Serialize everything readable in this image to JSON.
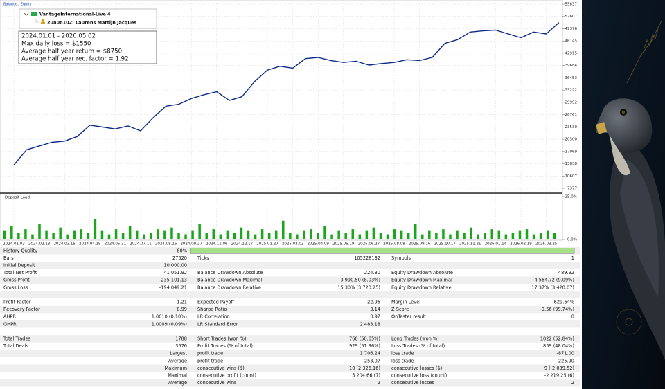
{
  "header": {
    "legend": "Balance / Equity",
    "server": "VantageInternational-Live 4",
    "account": "20808102: Laurens Martijn Jacques",
    "deposit_label": "Deposit Load"
  },
  "info_box": [
    "2024.01.01 - 2026.05.02",
    "Max daily loss = $1550",
    "Average half year return = $8750",
    "Average half year rec. factor = 1.92"
  ],
  "chart_data": [
    {
      "type": "line",
      "categories": [
        "2024.01.03",
        null,
        "2024.02.13",
        null,
        "2024.03.15",
        null,
        "2024.04.18",
        null,
        "2024.05.31",
        null,
        "2024.07.11",
        null,
        "2024.08.16",
        null,
        "2024.09.27",
        null,
        "2024.11.06",
        null,
        "2024.12.17",
        null,
        "2025.01.27",
        null,
        "2025.03.03",
        null,
        "2025.04.09",
        null,
        "2025.05.19",
        null,
        "2025.06.27",
        null,
        "2025.08.08",
        null,
        "2025.09.16",
        null,
        "2025.10.17",
        null,
        "2025.11.21",
        null,
        "2026.01.14",
        null,
        "2026.02.19",
        null,
        "2026.03.25",
        null
      ],
      "series": [
        {
          "color": "#0b2a86",
          "values": [
            13500,
            17500,
            18500,
            19500,
            19800,
            21000,
            24000,
            23500,
            23000,
            23800,
            22500,
            26000,
            29000,
            29500,
            31000,
            32000,
            32800,
            30500,
            31500,
            35500,
            38500,
            39500,
            39000,
            41500,
            41800,
            41000,
            40500,
            40800,
            39800,
            40200,
            40500,
            41200,
            41000,
            41800,
            45500,
            46500,
            48500,
            48800,
            49000,
            48000,
            47000,
            48500,
            48000,
            51000
          ]
        }
      ],
      "ylim": [
        7377,
        55837
      ],
      "yticks": [
        7377,
        10607,
        13838,
        17069,
        20300,
        23530,
        26761,
        29992,
        33222,
        36453,
        39684,
        42915,
        46145,
        49376,
        52607,
        55837
      ],
      "grid": true
    },
    {
      "type": "bar",
      "color": "#1aa81a",
      "values": [
        5,
        8,
        4,
        6,
        3,
        9,
        5,
        4,
        7,
        3,
        5,
        6,
        4,
        12,
        5,
        3,
        6,
        4,
        8,
        5,
        3,
        4,
        6,
        5,
        7,
        4,
        3,
        5,
        9,
        4,
        6,
        3,
        5,
        4,
        7,
        5,
        3,
        6,
        4,
        5,
        11,
        4,
        3,
        5,
        6,
        4,
        8,
        3,
        5,
        4,
        6,
        3,
        5,
        7,
        4,
        3,
        6,
        5,
        4,
        9,
        3,
        5,
        4,
        6,
        3,
        5,
        4,
        7,
        3,
        4,
        6,
        5,
        3,
        4,
        5,
        6,
        3,
        4,
        5,
        4
      ],
      "ylim": [
        0,
        25
      ],
      "yticks": [
        {
          "value": 0,
          "label": "0.0%"
        },
        {
          "value": 25,
          "label": "25.0%"
        }
      ]
    }
  ],
  "report": {
    "rows": [
      {
        "cells": [
          [
            "History Quality",
            "80%"
          ]
        ]
      },
      {
        "cells": [
          [
            "Bars",
            "27520"
          ],
          [
            "Ticks",
            "105228132"
          ],
          [
            "Symbols",
            "1"
          ]
        ]
      },
      {
        "cells": [
          [
            "Initial Deposit",
            "10 000.00"
          ]
        ]
      },
      {
        "cells": [
          [
            "Total Net Profit",
            "41 051.92"
          ],
          [
            "Balance Drawdown Absolute",
            "224.30"
          ],
          [
            "Equity Drawdown Absolute",
            "489.92"
          ]
        ]
      },
      {
        "cells": [
          [
            "Gross Profit",
            "235 101.13"
          ],
          [
            "Balance Drawdown Maximal",
            "3 990.50 (8.03%)"
          ],
          [
            "Equity Drawdown Maximal",
            "4 564.72 (9.09%)"
          ]
        ]
      },
      {
        "cells": [
          [
            "Gross Loss",
            "-194 049.21"
          ],
          [
            "Balance Drawdown Relative",
            "15.30% (3 720.25)"
          ],
          [
            "Equity Drawdown Relative",
            "17.37% (3 420.07)"
          ]
        ]
      },
      {
        "cells": []
      },
      {
        "cells": [
          [
            "Profit Factor",
            "1.21"
          ],
          [
            "Expected Payoff",
            "22.96"
          ],
          [
            "Margin Level",
            "629.64%"
          ]
        ]
      },
      {
        "cells": [
          [
            "Recovery Factor",
            "8.99"
          ],
          [
            "Sharpe Ratio",
            "3.14"
          ],
          [
            "Z-Score",
            "-3.56 (99.74%)"
          ]
        ]
      },
      {
        "cells": [
          [
            "AHPR",
            "1.0010 (0.10%)"
          ],
          [
            "LR Correlation",
            "0.97"
          ],
          [
            "OnTester result",
            "0"
          ]
        ]
      },
      {
        "cells": [
          [
            "GHPR",
            "1.0009 (0.09%)"
          ],
          [
            "LR Standard Error",
            "2 483.18"
          ]
        ]
      },
      {
        "cells": []
      },
      {
        "cells": [
          [
            "Total Trades",
            "1788"
          ],
          [
            "Short Trades (won %)",
            "766 (50.65%)"
          ],
          [
            "Long Trades (won %)",
            "1022 (52.84%)"
          ]
        ]
      },
      {
        "cells": [
          [
            "Total Deals",
            "3576"
          ],
          [
            "Profit Trades (% of total)",
            "929 (51.96%)"
          ],
          [
            "Loss Trades (% of total)",
            "859 (48.04%)"
          ]
        ]
      },
      {
        "cells": [
          [
            "Largest"
          ],
          [
            "profit trade",
            "1 706.24"
          ],
          [
            "loss trade",
            "-871.00"
          ]
        ]
      },
      {
        "cells": [
          [
            "Average"
          ],
          [
            "profit trade",
            "253.07"
          ],
          [
            "loss trade",
            "-225.90"
          ]
        ]
      },
      {
        "cells": [
          [
            "Maximum"
          ],
          [
            "consecutive wins ($)",
            "10 (2 326.16)"
          ],
          [
            "consecutive losses ($)",
            "9 (-2 039.52)"
          ]
        ]
      },
      {
        "cells": [
          [
            "Maximal"
          ],
          [
            "consecutive profit (count)",
            "5 204.66 (7)"
          ],
          [
            "consecutive loss (count)",
            "-2 219.25 (6)"
          ]
        ]
      },
      {
        "cells": [
          [
            "Average"
          ],
          [
            "consecutive wins",
            "2"
          ],
          [
            "consecutive losses",
            "2"
          ]
        ]
      }
    ]
  }
}
